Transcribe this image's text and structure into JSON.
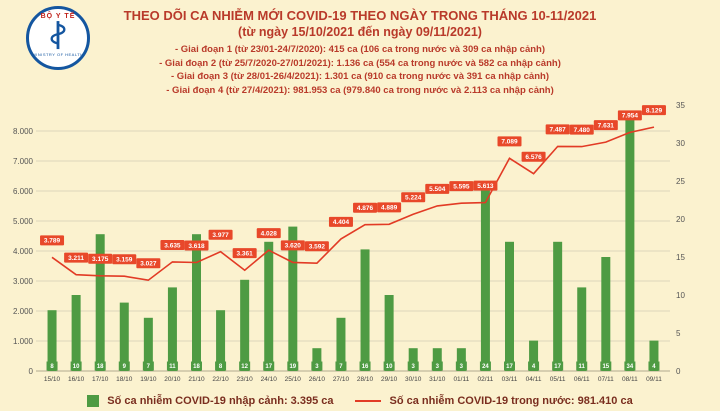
{
  "colors": {
    "background": "#fbf2cf",
    "title_text": "#b93a2a",
    "legend_text": "#7a2e1f",
    "bar": "#4e9b43",
    "line": "#e23b25",
    "label_box": "#e8482a",
    "grid": "#ddd6bb",
    "axis_text": "#555555",
    "logo_blue": "#1456a0",
    "logo_red": "#c0221c"
  },
  "logo": {
    "top_text": "BỘ Y TẾ",
    "bottom_text": "MINISTRY OF HEALTH"
  },
  "header": {
    "title_line1": "THEO DÕI CA NHIỄM MỚI COVID-19 THEO NGÀY TRONG THÁNG 10-11/2021",
    "title_line2": "(từ ngày 15/10/2021 đến ngày 09/11/2021)",
    "phase_lines": [
      "- Giai đoạn 1 (từ 23/01-24/7/2020): 415 ca (106 ca trong nước và 309 ca nhập cảnh)",
      "- Giai đoạn 2 (từ 25/7/2020-27/01/2021): 1.136 ca (554 ca trong nước và 582 ca nhập cảnh)",
      "- Giai đoạn 3 (từ 28/01-26/4/2021): 1.301 ca (910 ca trong nước và 391 ca nhập cảnh)",
      "- Giai đoạn 4 (từ 27/4/2021): 981.953 ca (979.840 ca trong nước và 2.113 ca nhập cảnh)"
    ]
  },
  "chart_data": {
    "type": "bar+line",
    "title": "THEO DÕI CA NHIỄM MỚI COVID-19 THEO NGÀY TRONG THÁNG 10-11/2021",
    "subtitle": "(từ ngày 15/10/2021 đến ngày 09/11/2021)",
    "categories": [
      "15/10",
      "16/10",
      "17/10",
      "18/10",
      "19/10",
      "20/10",
      "21/10",
      "22/10",
      "23/10",
      "24/10",
      "25/10",
      "26/10",
      "27/10",
      "28/10",
      "29/10",
      "30/10",
      "31/10",
      "01/11",
      "02/11",
      "03/11",
      "04/11",
      "05/11",
      "06/11",
      "07/11",
      "08/11",
      "09/11"
    ],
    "series": [
      {
        "name": "Số ca nhiễm COVID-19 nhập cảnh",
        "type": "bar",
        "axis": "right",
        "values": [
          8,
          10,
          18,
          9,
          7,
          11,
          18,
          8,
          12,
          17,
          19,
          3,
          7,
          16,
          10,
          3,
          3,
          3,
          24,
          17,
          4,
          17,
          11,
          15,
          34,
          4
        ],
        "labels": [
          "8",
          "10",
          "18",
          "9",
          "7",
          "11",
          "18",
          "8",
          "12",
          "17",
          "19",
          "3",
          "7",
          "16",
          "10",
          "3",
          "3",
          "3",
          "24",
          "17",
          "4",
          "17",
          "11",
          "15",
          "34",
          "4"
        ]
      },
      {
        "name": "Số ca nhiễm COVID-19 trong nước",
        "type": "line",
        "axis": "left",
        "values": [
          3789,
          3211,
          3175,
          3159,
          3027,
          3635,
          3618,
          3977,
          3361,
          4028,
          3620,
          3592,
          4404,
          4876,
          4889,
          5224,
          5504,
          5595,
          5613,
          7089,
          6576,
          7487,
          7480,
          7631,
          7954,
          8129
        ],
        "labels": [
          "3.789",
          "3.211",
          "3.175",
          "3.159",
          "3.027",
          "3.635",
          "3.618",
          "3.977",
          "3.361",
          "4.028",
          "3.620",
          "3.592",
          "4.404",
          "4.876",
          "4.889",
          "5.224",
          "5.504",
          "5.595",
          "5.613",
          "7.089",
          "6.576",
          "7.487",
          "7.480",
          "7.631",
          "7.954",
          "8.129"
        ]
      }
    ],
    "left_axis": {
      "min": 0,
      "max": 8000,
      "ticks": [
        "0",
        "1.000",
        "2.000",
        "3.000",
        "4.000",
        "5.000",
        "6.000",
        "7.000",
        "8.000"
      ]
    },
    "right_axis": {
      "min": 0,
      "max": 35,
      "ticks": [
        "0",
        "5",
        "10",
        "15",
        "20",
        "25",
        "30",
        "35"
      ]
    },
    "grid": true,
    "legend_position": "bottom"
  },
  "legend": {
    "bar_label": "Số ca nhiễm COVID-19 nhập cảnh: 3.395 ca",
    "line_label": "Số ca nhiễm COVID-19 trong nước: 981.410 ca"
  }
}
